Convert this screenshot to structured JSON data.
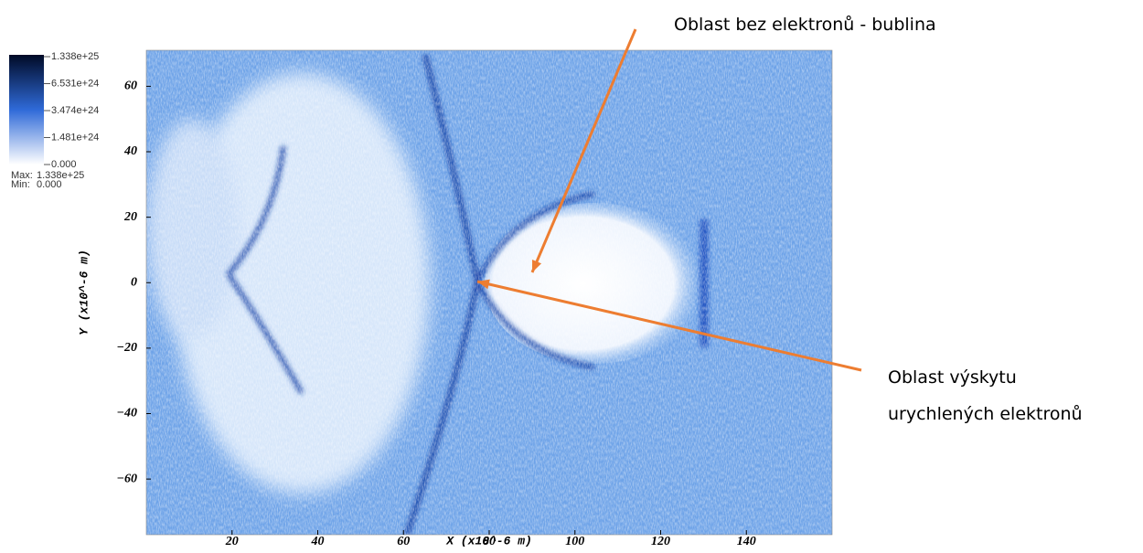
{
  "chart_data": {
    "type": "image",
    "x_label": "X (x10^-6 m)",
    "y_label": "Y (x10^-6 m)",
    "xlim": [
      0,
      160
    ],
    "ylim": [
      -77,
      71
    ],
    "xticks": [
      20,
      40,
      60,
      80,
      100,
      120,
      140
    ],
    "yticks": [
      {
        "value": -60,
        "label": "−60"
      },
      {
        "value": -40,
        "label": "−40"
      },
      {
        "value": -20,
        "label": "−20"
      },
      0,
      20,
      40,
      60
    ],
    "colorbar": {
      "colors": [
        "#ffffff",
        "#2f6ad8",
        "#000a26"
      ],
      "ticks": [
        {
          "value": 0,
          "label": "0.000"
        },
        {
          "value": 1.481e+24,
          "label": "1.481e+24"
        },
        {
          "value": 3.474e+24,
          "label": "3.474e+24"
        },
        {
          "value": 6.531e+24,
          "label": "6.531e+24"
        },
        {
          "value": 1.338e+25,
          "label": "1.338e+25"
        }
      ],
      "max_label": "Max:",
      "max": {
        "value": 1.338e+25,
        "label": "1.338e+25"
      },
      "min_label": "Min:",
      "min": {
        "value": 0,
        "label": "0.000"
      }
    },
    "annotations": [
      {
        "lines": [
          "Oblast bez elektronů - bublina"
        ],
        "color": "#ed7d31"
      },
      {
        "lines": [
          "Oblast výskytu",
          "urychlených elektronů"
        ],
        "color": "#ed7d31"
      }
    ]
  }
}
